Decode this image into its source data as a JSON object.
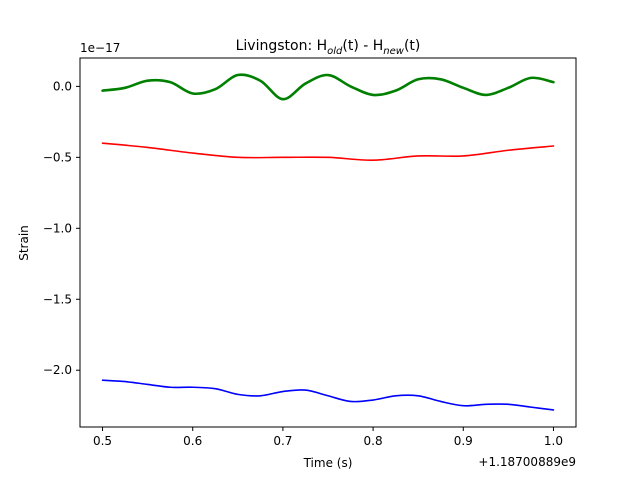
{
  "chart_data": {
    "type": "line",
    "title": {
      "prefix": "Livingston: H",
      "sub1": "old",
      "mid": "(t) - H",
      "sub2": "new",
      "suffix": "(t)"
    },
    "xlabel": "Time (s)",
    "ylabel": "Strain",
    "y_scale_label": "1e−17",
    "x_offset_label": "+1.18700889e9",
    "xlim": [
      0.475,
      1.025
    ],
    "ylim": [
      -2.4,
      0.2
    ],
    "x_ticks": [
      0.5,
      0.6,
      0.7,
      0.8,
      0.9,
      1.0
    ],
    "x_tick_labels": [
      "0.5",
      "0.6",
      "0.7",
      "0.8",
      "0.9",
      "1.0"
    ],
    "y_ticks": [
      0.0,
      -0.5,
      -1.0,
      -1.5,
      -2.0
    ],
    "y_tick_labels": [
      "0.0",
      "−0.5",
      "−1.0",
      "−1.5",
      "−2.0"
    ],
    "grid": false,
    "series": [
      {
        "color": "#008000",
        "width": 2.6,
        "x": [
          0.5,
          0.525,
          0.55,
          0.575,
          0.6,
          0.625,
          0.65,
          0.675,
          0.7,
          0.725,
          0.75,
          0.775,
          0.8,
          0.825,
          0.85,
          0.875,
          0.9,
          0.925,
          0.95,
          0.975,
          1.0
        ],
        "values": [
          -0.03,
          -0.01,
          0.04,
          0.03,
          -0.05,
          -0.02,
          0.08,
          0.04,
          -0.09,
          0.02,
          0.08,
          0.0,
          -0.06,
          -0.03,
          0.05,
          0.05,
          -0.01,
          -0.06,
          -0.01,
          0.06,
          0.03
        ]
      },
      {
        "color": "#ff0000",
        "width": 1.6,
        "x": [
          0.5,
          0.55,
          0.6,
          0.65,
          0.7,
          0.75,
          0.8,
          0.85,
          0.9,
          0.95,
          1.0
        ],
        "values": [
          -0.4,
          -0.43,
          -0.47,
          -0.5,
          -0.5,
          -0.5,
          -0.52,
          -0.49,
          -0.49,
          -0.45,
          -0.42
        ]
      },
      {
        "color": "#0000ff",
        "width": 1.6,
        "x": [
          0.5,
          0.525,
          0.55,
          0.575,
          0.6,
          0.625,
          0.65,
          0.675,
          0.7,
          0.725,
          0.75,
          0.775,
          0.8,
          0.825,
          0.85,
          0.875,
          0.9,
          0.925,
          0.95,
          0.975,
          1.0
        ],
        "values": [
          -2.07,
          -2.08,
          -2.1,
          -2.12,
          -2.12,
          -2.13,
          -2.17,
          -2.18,
          -2.15,
          -2.14,
          -2.18,
          -2.22,
          -2.21,
          -2.18,
          -2.18,
          -2.22,
          -2.25,
          -2.24,
          -2.24,
          -2.26,
          -2.28
        ]
      }
    ]
  }
}
